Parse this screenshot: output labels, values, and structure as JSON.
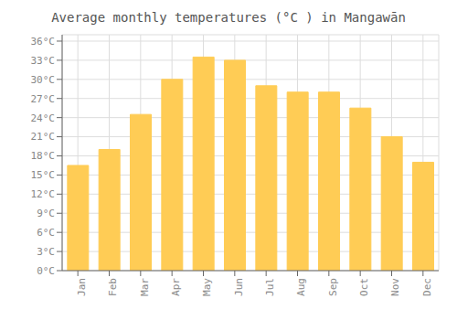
{
  "chart_data": {
    "type": "bar",
    "title": "Average monthly temperatures (°C ) in Mangawān",
    "categories": [
      "Jan",
      "Feb",
      "Mar",
      "Apr",
      "May",
      "Jun",
      "Jul",
      "Aug",
      "Sep",
      "Oct",
      "Nov",
      "Dec"
    ],
    "values": [
      16.5,
      19.0,
      24.5,
      30.0,
      33.5,
      33.0,
      29.0,
      28.0,
      28.0,
      25.5,
      21.0,
      17.0
    ],
    "color": "#FFCC55",
    "ylim": [
      0,
      37
    ],
    "yticks": [
      {
        "value": 0,
        "label": "0°C"
      },
      {
        "value": 3,
        "label": "3°C"
      },
      {
        "value": 6,
        "label": "6°C"
      },
      {
        "value": 9,
        "label": "9°C"
      },
      {
        "value": 12,
        "label": "12°C"
      },
      {
        "value": 15,
        "label": "15°C"
      },
      {
        "value": 18,
        "label": "18°C"
      },
      {
        "value": 21,
        "label": "21°C"
      },
      {
        "value": 24,
        "label": "24°C"
      },
      {
        "value": 27,
        "label": "27°C"
      },
      {
        "value": 30,
        "label": "30°C"
      },
      {
        "value": 33,
        "label": "33°C"
      },
      {
        "value": 36,
        "label": "36°C"
      }
    ],
    "grid": true
  }
}
